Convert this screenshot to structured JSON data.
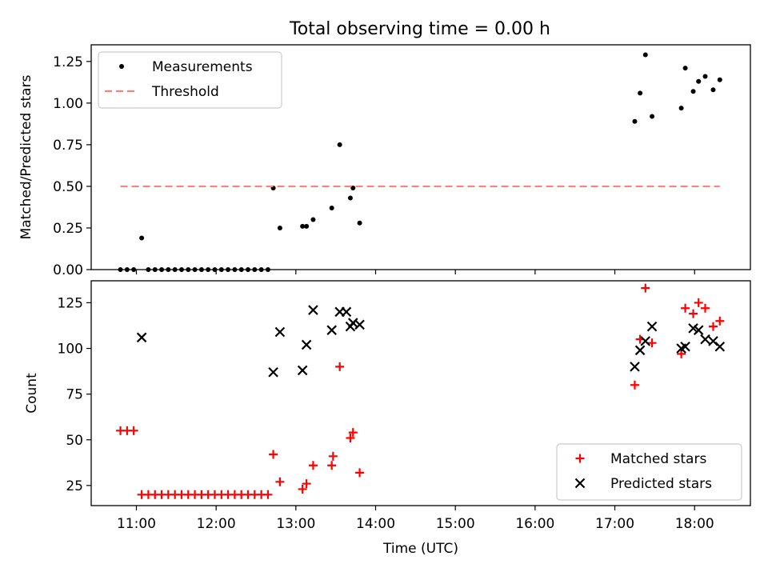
{
  "title": "Total observing time = 0.00 h",
  "chart_data": [
    {
      "type": "scatter",
      "ylabel": "Matched/Predicted stars",
      "xlabel": "",
      "xlim": [
        "10:26",
        "18:42"
      ],
      "ylim": [
        0,
        1.35
      ],
      "yticks": [
        0,
        0.25,
        0.5,
        0.75,
        1.0,
        1.25
      ],
      "ytick_labels": [
        "0.00",
        "0.25",
        "0.50",
        "0.75",
        "1.00",
        "1.25"
      ],
      "legend_position": "upper-left",
      "series": [
        {
          "name": "Measurements",
          "marker": "dot",
          "color": "#000000",
          "x": [
            "10:48",
            "10:53",
            "10:58",
            "11:04",
            "11:09",
            "11:14",
            "11:19",
            "11:24",
            "11:29",
            "11:34",
            "11:39",
            "11:44",
            "11:49",
            "11:54",
            "11:59",
            "12:04",
            "12:09",
            "12:14",
            "12:19",
            "12:24",
            "12:29",
            "12:34",
            "12:39",
            "12:43",
            "12:48",
            "13:05",
            "13:08",
            "13:13",
            "13:27",
            "13:33",
            "13:41",
            "13:43",
            "13:48",
            "17:15",
            "17:19",
            "17:23",
            "17:28",
            "17:50",
            "17:53",
            "17:59",
            "18:03",
            "18:08",
            "18:14",
            "18:19"
          ],
          "y": [
            0,
            0,
            0,
            0.19,
            0,
            0,
            0,
            0,
            0,
            0,
            0,
            0,
            0,
            0,
            0,
            0,
            0,
            0,
            0,
            0,
            0,
            0,
            0,
            0.49,
            0.25,
            0.26,
            0.26,
            0.3,
            0.37,
            0.75,
            0.43,
            0.49,
            0.28,
            0.89,
            1.06,
            1.29,
            0.92,
            0.97,
            1.21,
            1.07,
            1.13,
            1.16,
            1.08,
            1.14
          ]
        },
        {
          "name": "Threshold",
          "line": "dashed",
          "color": "#ff7f7f",
          "x": [
            "10:48",
            "18:19"
          ],
          "y": [
            0.5,
            0.5
          ]
        }
      ]
    },
    {
      "type": "scatter",
      "ylabel": "Count",
      "xlabel": "Time (UTC)",
      "xlim": [
        "10:26",
        "18:42"
      ],
      "ylim": [
        14,
        137
      ],
      "yticks": [
        25,
        50,
        75,
        100,
        125
      ],
      "ytick_labels": [
        "25",
        "50",
        "75",
        "100",
        "125"
      ],
      "xticks": [
        "11:00",
        "12:00",
        "13:00",
        "14:00",
        "15:00",
        "16:00",
        "17:00",
        "18:00"
      ],
      "legend_position": "lower-right",
      "series": [
        {
          "name": "Matched stars",
          "marker": "plus",
          "color": "#ff0000",
          "x": [
            "10:48",
            "10:53",
            "10:58",
            "11:04",
            "11:09",
            "11:14",
            "11:19",
            "11:24",
            "11:29",
            "11:34",
            "11:39",
            "11:44",
            "11:49",
            "11:54",
            "11:59",
            "12:04",
            "12:09",
            "12:14",
            "12:19",
            "12:24",
            "12:29",
            "12:34",
            "12:39",
            "12:43",
            "12:48",
            "13:05",
            "13:08",
            "13:13",
            "13:27",
            "13:28",
            "13:33",
            "13:41",
            "13:43",
            "13:48",
            "17:15",
            "17:19",
            "17:23",
            "17:28",
            "17:50",
            "17:53",
            "17:59",
            "18:03",
            "18:08",
            "18:14",
            "18:19"
          ],
          "y": [
            55,
            55,
            55,
            20,
            20,
            20,
            20,
            20,
            20,
            20,
            20,
            20,
            20,
            20,
            20,
            20,
            20,
            20,
            20,
            20,
            20,
            20,
            20,
            42,
            27,
            23,
            26,
            36,
            36,
            41,
            90,
            51,
            54,
            32,
            80,
            105,
            133,
            103,
            97,
            122,
            119,
            125,
            122,
            112,
            115
          ]
        },
        {
          "name": "Predicted stars",
          "marker": "x",
          "color": "#000000",
          "x": [
            "11:04",
            "12:43",
            "12:48",
            "13:05",
            "13:08",
            "13:13",
            "13:27",
            "13:33",
            "13:38",
            "13:41",
            "13:43",
            "13:48",
            "17:15",
            "17:19",
            "17:23",
            "17:28",
            "17:50",
            "17:53",
            "17:59",
            "18:03",
            "18:08",
            "18:14",
            "18:19"
          ],
          "y": [
            106,
            87,
            109,
            88,
            102,
            121,
            110,
            120,
            120,
            112,
            114,
            113,
            90,
            99,
            104,
            112,
            100,
            101,
            111,
            110,
            105,
            104,
            101
          ]
        }
      ]
    }
  ]
}
